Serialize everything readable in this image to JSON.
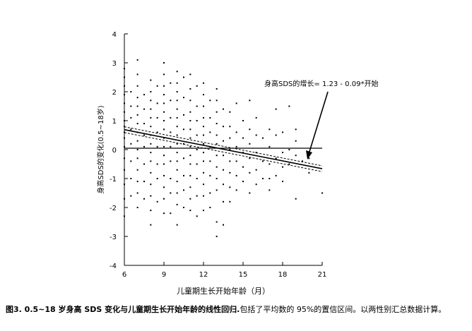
{
  "caption": {
    "label": "图3. 0.5~18 岁身高 SDS 变化与儿童期生长开始年龄的线性回归.",
    "text": "包括了平均数的 95%的置信区间。以两性别汇总数据计算。"
  },
  "chart_data": {
    "type": "scatter",
    "xlabel": "儿童期生长开始年龄（月）",
    "ylabel": "身高SDS的变化(0.5~18岁)",
    "xlim": [
      6,
      21
    ],
    "ylim": [
      -4,
      4
    ],
    "xticks": [
      6,
      9,
      12,
      15,
      18,
      21
    ],
    "yticks": [
      -4,
      -3,
      -2,
      -1,
      0,
      1,
      2,
      3,
      4
    ],
    "regression": {
      "intercept": 1.23,
      "slope": -0.09,
      "x_range": [
        6,
        21
      ]
    },
    "ci_offset": 0.1,
    "annotation": "身高SDS的增长= 1.23 - 0.09*开始",
    "points": [
      [
        6,
        2.8
      ],
      [
        6,
        2.5
      ],
      [
        6,
        2.2
      ],
      [
        6,
        1.9
      ],
      [
        6,
        1.6
      ],
      [
        6,
        1.3
      ],
      [
        6,
        1.0
      ],
      [
        6,
        0.8
      ],
      [
        6,
        0.6
      ],
      [
        6,
        0.4
      ],
      [
        6,
        0.1
      ],
      [
        6,
        -0.3
      ],
      [
        6,
        -0.7
      ],
      [
        6,
        -1.2
      ],
      [
        6,
        -1.7
      ],
      [
        6,
        -2.3
      ],
      [
        6.5,
        2.0
      ],
      [
        6.5,
        1.5
      ],
      [
        6.5,
        1.1
      ],
      [
        6.5,
        0.7
      ],
      [
        6.5,
        0.2
      ],
      [
        6.5,
        -0.4
      ],
      [
        6.5,
        -1.0
      ],
      [
        6.5,
        -1.6
      ],
      [
        7,
        3.1
      ],
      [
        7,
        2.6
      ],
      [
        7,
        2.2
      ],
      [
        7,
        1.8
      ],
      [
        7,
        1.5
      ],
      [
        7,
        1.2
      ],
      [
        7,
        0.9
      ],
      [
        7,
        0.6
      ],
      [
        7,
        0.3
      ],
      [
        7,
        0.0
      ],
      [
        7,
        -0.3
      ],
      [
        7,
        -0.7
      ],
      [
        7,
        -1.1
      ],
      [
        7,
        -1.5
      ],
      [
        7,
        -2.0
      ],
      [
        7.5,
        1.9
      ],
      [
        7.5,
        1.4
      ],
      [
        7.5,
        0.9
      ],
      [
        7.5,
        0.5
      ],
      [
        7.5,
        0.1
      ],
      [
        7.5,
        -0.5
      ],
      [
        7.5,
        -1.1
      ],
      [
        7.5,
        -1.7
      ],
      [
        8,
        2.4
      ],
      [
        8,
        2.0
      ],
      [
        8,
        1.7
      ],
      [
        8,
        1.4
      ],
      [
        8,
        1.1
      ],
      [
        8,
        0.8
      ],
      [
        8,
        0.5
      ],
      [
        8,
        0.2
      ],
      [
        8,
        -0.1
      ],
      [
        8,
        -0.4
      ],
      [
        8,
        -0.8
      ],
      [
        8,
        -1.2
      ],
      [
        8,
        -1.6
      ],
      [
        8,
        -2.1
      ],
      [
        8,
        -2.6
      ],
      [
        8.5,
        2.2
      ],
      [
        8.5,
        1.6
      ],
      [
        8.5,
        1.1
      ],
      [
        8.5,
        0.6
      ],
      [
        8.5,
        0.1
      ],
      [
        8.5,
        -0.5
      ],
      [
        8.5,
        -1.0
      ],
      [
        8.5,
        -1.8
      ],
      [
        9,
        3.0
      ],
      [
        9,
        2.6
      ],
      [
        9,
        2.2
      ],
      [
        9,
        1.9
      ],
      [
        9,
        1.6
      ],
      [
        9,
        1.3
      ],
      [
        9,
        1.0
      ],
      [
        9,
        0.7
      ],
      [
        9,
        0.4
      ],
      [
        9,
        0.1
      ],
      [
        9,
        -0.2
      ],
      [
        9,
        -0.5
      ],
      [
        9,
        -0.9
      ],
      [
        9,
        -1.3
      ],
      [
        9,
        -1.7
      ],
      [
        9,
        -2.2
      ],
      [
        9.5,
        2.3
      ],
      [
        9.5,
        1.7
      ],
      [
        9.5,
        1.1
      ],
      [
        9.5,
        0.6
      ],
      [
        9.5,
        0.1
      ],
      [
        9.5,
        -0.4
      ],
      [
        9.5,
        -1.0
      ],
      [
        9.5,
        -1.5
      ],
      [
        9.5,
        -2.2
      ],
      [
        10,
        2.7
      ],
      [
        10,
        2.3
      ],
      [
        10,
        2.0
      ],
      [
        10,
        1.7
      ],
      [
        10,
        1.4
      ],
      [
        10,
        1.1
      ],
      [
        10,
        0.8
      ],
      [
        10,
        0.5
      ],
      [
        10,
        0.2
      ],
      [
        10,
        -0.1
      ],
      [
        10,
        -0.4
      ],
      [
        10,
        -0.7
      ],
      [
        10,
        -1.1
      ],
      [
        10,
        -1.5
      ],
      [
        10,
        -1.9
      ],
      [
        10,
        -2.6
      ],
      [
        10.5,
        2.5
      ],
      [
        10.5,
        1.8
      ],
      [
        10.5,
        1.2
      ],
      [
        10.5,
        0.7
      ],
      [
        10.5,
        0.2
      ],
      [
        10.5,
        -0.3
      ],
      [
        10.5,
        -0.9
      ],
      [
        10.5,
        -1.4
      ],
      [
        10.5,
        -2.0
      ],
      [
        11,
        2.6
      ],
      [
        11,
        2.1
      ],
      [
        11,
        1.7
      ],
      [
        11,
        1.3
      ],
      [
        11,
        1.0
      ],
      [
        11,
        0.7
      ],
      [
        11,
        0.4
      ],
      [
        11,
        0.1
      ],
      [
        11,
        -0.2
      ],
      [
        11,
        -0.5
      ],
      [
        11,
        -0.9
      ],
      [
        11,
        -1.3
      ],
      [
        11,
        -1.7
      ],
      [
        11,
        -2.1
      ],
      [
        11.5,
        2.2
      ],
      [
        11.5,
        1.5
      ],
      [
        11.5,
        1.0
      ],
      [
        11.5,
        0.5
      ],
      [
        11.5,
        0.0
      ],
      [
        11.5,
        -0.5
      ],
      [
        11.5,
        -1.0
      ],
      [
        11.5,
        -1.6
      ],
      [
        11.5,
        -2.3
      ],
      [
        12,
        2.3
      ],
      [
        12,
        1.9
      ],
      [
        12,
        1.5
      ],
      [
        12,
        1.1
      ],
      [
        12,
        0.8
      ],
      [
        12,
        0.5
      ],
      [
        12,
        0.2
      ],
      [
        12,
        -0.1
      ],
      [
        12,
        -0.4
      ],
      [
        12,
        -0.8
      ],
      [
        12,
        -1.2
      ],
      [
        12,
        -1.6
      ],
      [
        12,
        -2.1
      ],
      [
        12.5,
        1.7
      ],
      [
        12.5,
        1.1
      ],
      [
        12.5,
        0.6
      ],
      [
        12.5,
        0.1
      ],
      [
        12.5,
        -0.4
      ],
      [
        12.5,
        -0.9
      ],
      [
        12.5,
        -1.5
      ],
      [
        12.5,
        -2.0
      ],
      [
        13,
        2.1
      ],
      [
        13,
        1.7
      ],
      [
        13,
        1.3
      ],
      [
        13,
        0.9
      ],
      [
        13,
        0.5
      ],
      [
        13,
        0.2
      ],
      [
        13,
        -0.2
      ],
      [
        13,
        -0.6
      ],
      [
        13,
        -1.0
      ],
      [
        13,
        -1.4
      ],
      [
        13,
        -2.5
      ],
      [
        13,
        -3.0
      ],
      [
        13.5,
        1.4
      ],
      [
        13.5,
        0.8
      ],
      [
        13.5,
        0.3
      ],
      [
        13.5,
        -0.2
      ],
      [
        13.5,
        -0.7
      ],
      [
        13.5,
        -1.2
      ],
      [
        13.5,
        -1.8
      ],
      [
        13.5,
        -2.6
      ],
      [
        14,
        1.3
      ],
      [
        14,
        0.8
      ],
      [
        14,
        0.4
      ],
      [
        14,
        0.0
      ],
      [
        14,
        -0.4
      ],
      [
        14,
        -0.8
      ],
      [
        14,
        -1.3
      ],
      [
        14,
        -1.8
      ],
      [
        14.5,
        1.6
      ],
      [
        14.5,
        0.6
      ],
      [
        14.5,
        0.1
      ],
      [
        14.5,
        -0.4
      ],
      [
        14.5,
        -0.9
      ],
      [
        14.5,
        -1.4
      ],
      [
        15,
        1.0
      ],
      [
        15,
        0.4
      ],
      [
        15,
        -0.1
      ],
      [
        15,
        -0.6
      ],
      [
        15,
        -1.1
      ],
      [
        15.5,
        1.7
      ],
      [
        15.5,
        0.7
      ],
      [
        15.5,
        0.2
      ],
      [
        15.5,
        -0.3
      ],
      [
        15.5,
        -0.8
      ],
      [
        15.5,
        -1.5
      ],
      [
        16,
        1.1
      ],
      [
        16,
        0.5
      ],
      [
        16,
        -0.1
      ],
      [
        16,
        -0.7
      ],
      [
        16,
        -1.2
      ],
      [
        16.5,
        0.4
      ],
      [
        16.5,
        -0.4
      ],
      [
        16.5,
        -1.0
      ],
      [
        17,
        0.7
      ],
      [
        17,
        0.1
      ],
      [
        17,
        -0.5
      ],
      [
        17,
        -1.0
      ],
      [
        17,
        -1.4
      ],
      [
        17.5,
        1.4
      ],
      [
        17.5,
        0.5
      ],
      [
        17.5,
        -0.3
      ],
      [
        17.5,
        -0.9
      ],
      [
        18,
        0.6
      ],
      [
        18,
        -0.1
      ],
      [
        18,
        -0.6
      ],
      [
        18,
        -1.1
      ],
      [
        18.5,
        1.5
      ],
      [
        18.5,
        0.0
      ],
      [
        18.5,
        -0.5
      ],
      [
        19,
        0.7
      ],
      [
        19,
        0.3
      ],
      [
        19,
        -0.2
      ],
      [
        19,
        -1.7
      ],
      [
        19.5,
        -0.4
      ],
      [
        20,
        -0.3
      ],
      [
        20,
        -0.8
      ],
      [
        21,
        -1.5
      ]
    ]
  }
}
